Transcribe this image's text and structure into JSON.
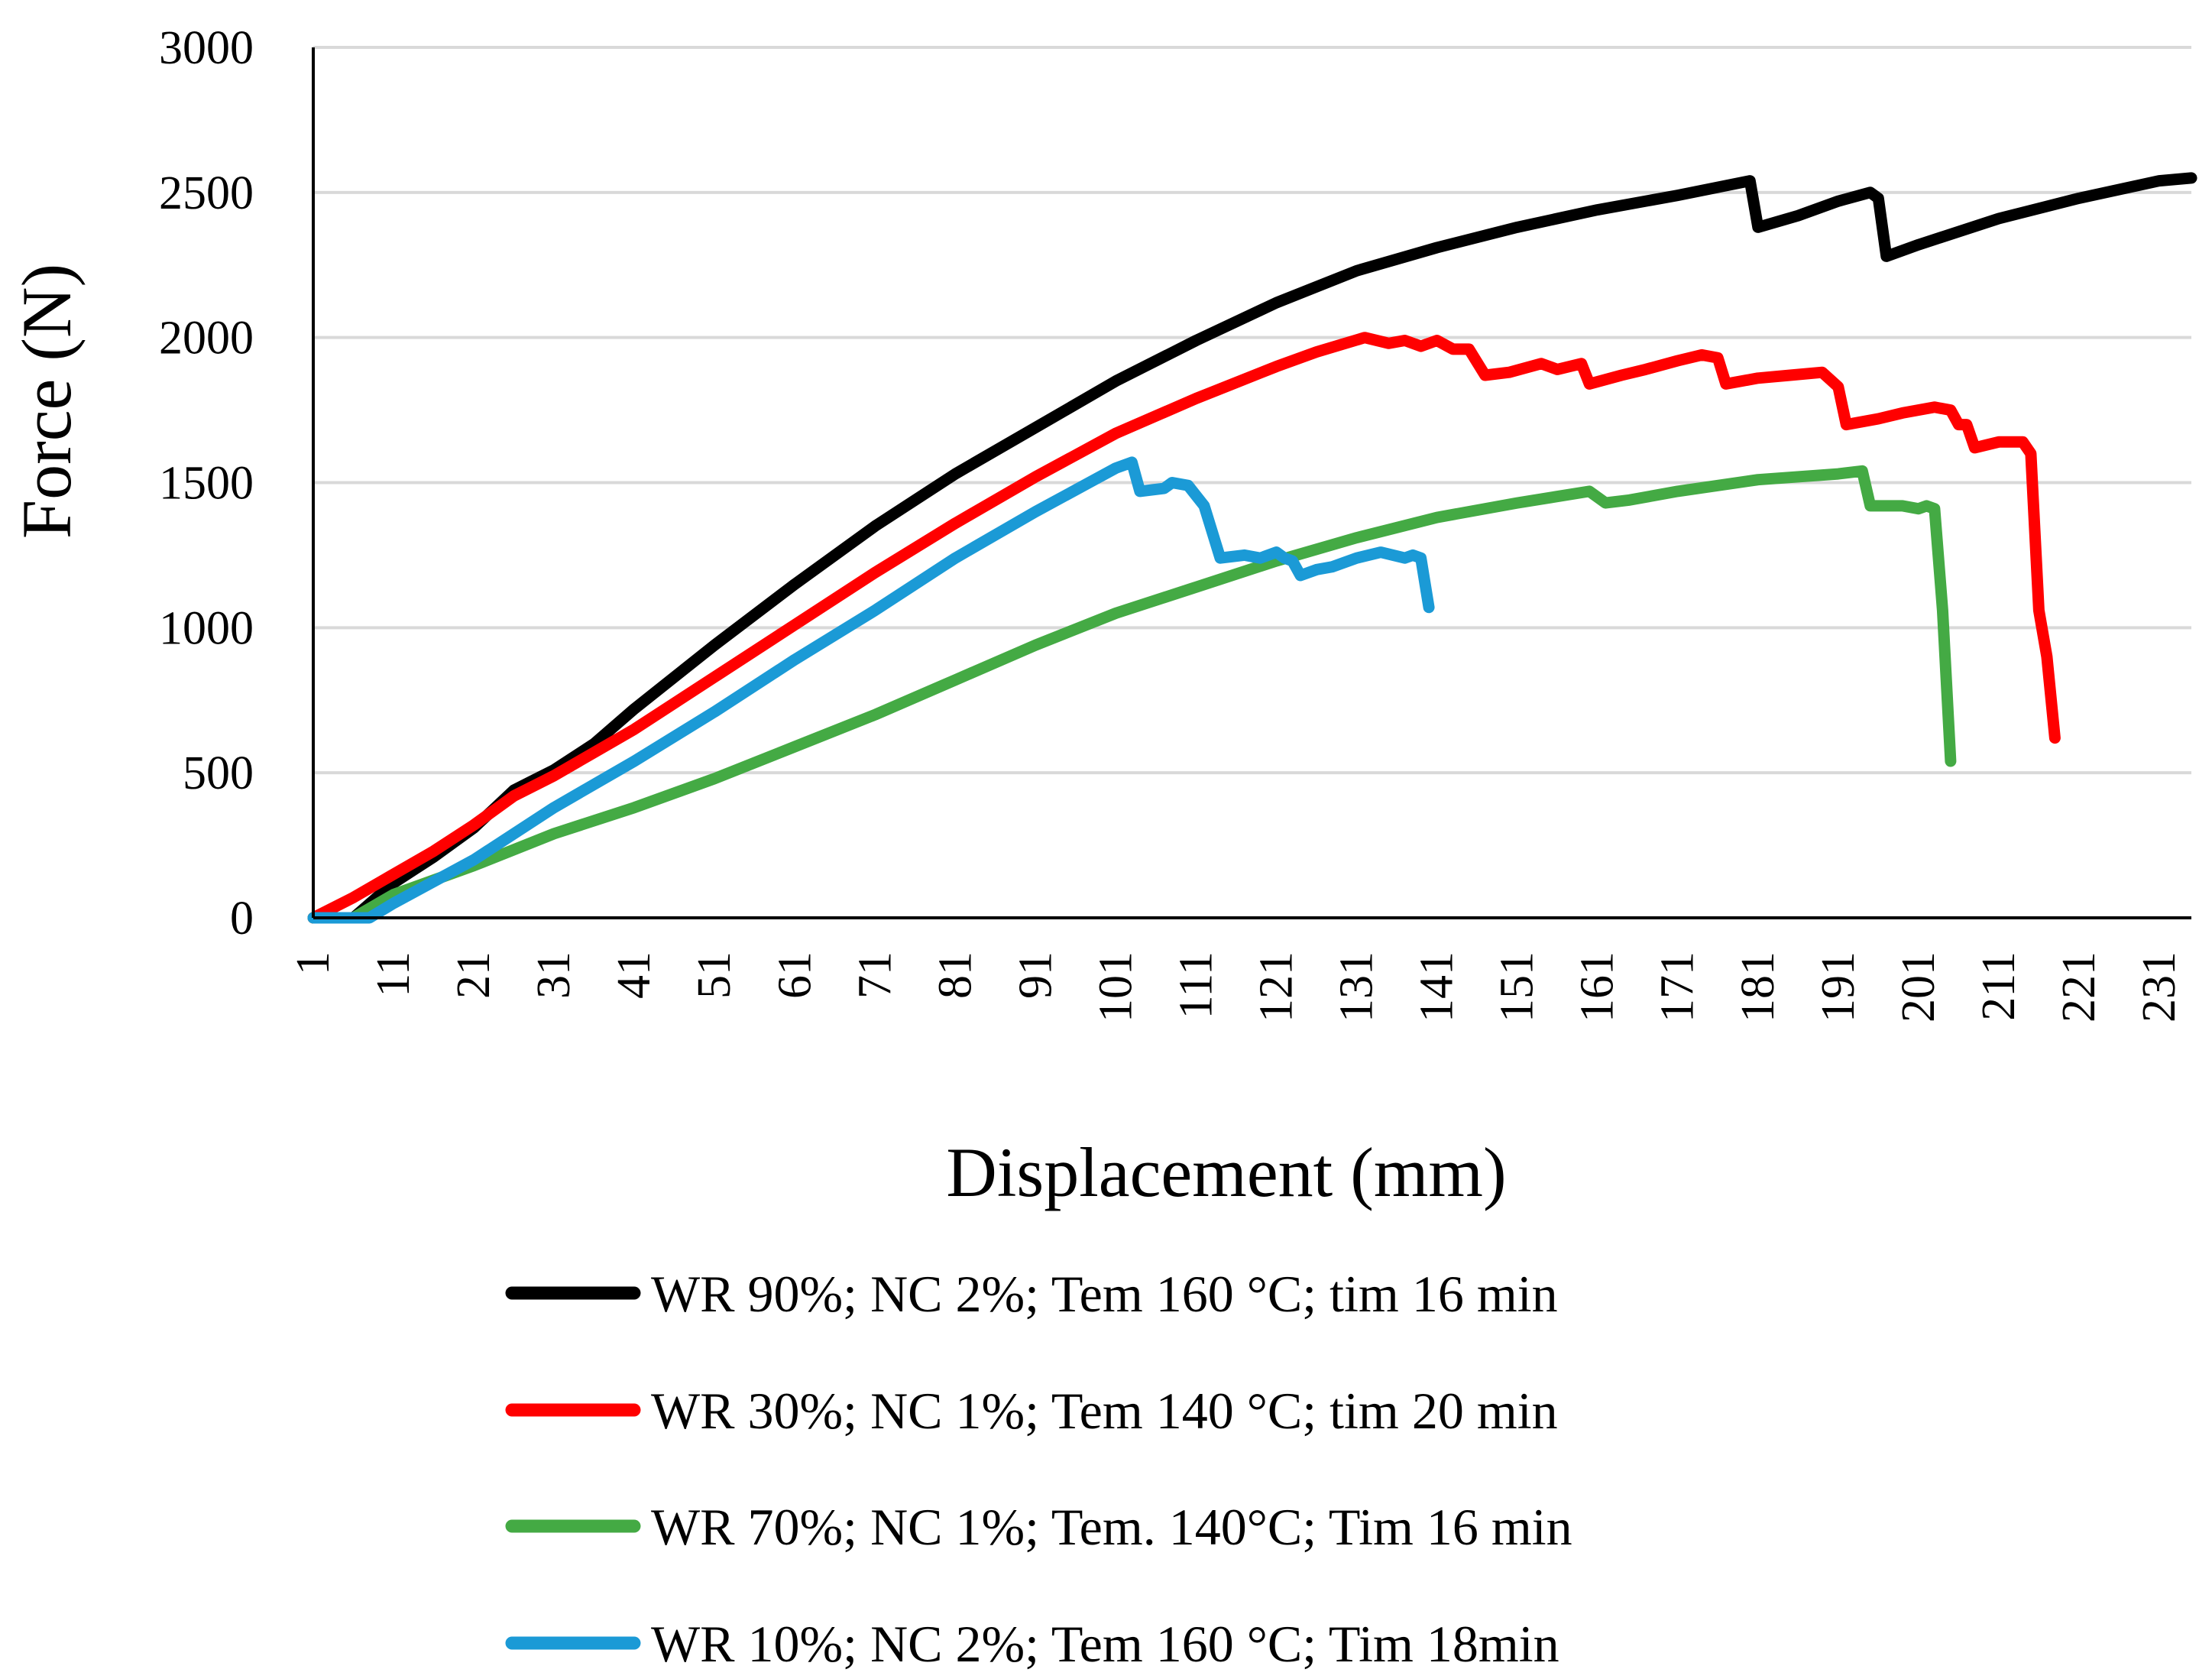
{
  "chart_data": {
    "type": "line",
    "title": "",
    "xlabel": "Displacement (mm)",
    "ylabel": "Force (N)",
    "xlim": [
      1,
      235
    ],
    "ylim": [
      0,
      3000
    ],
    "y_ticks": [
      "0",
      "500",
      "1000",
      "1500",
      "2000",
      "2500",
      "3000"
    ],
    "x_ticks": [
      "1",
      "11",
      "21",
      "31",
      "41",
      "51",
      "61",
      "71",
      "81",
      "91",
      "101",
      "111",
      "121",
      "131",
      "141",
      "151",
      "161",
      "171",
      "181",
      "191",
      "201",
      "211",
      "221",
      "231"
    ],
    "grid": "horizontal",
    "legend_position": "bottom",
    "series": [
      {
        "name": "WR 90%; NC 2%; Tem 160 °C; tim 16 min",
        "color": "#000000",
        "points": [
          [
            1,
            0
          ],
          [
            6,
            0
          ],
          [
            11,
            120
          ],
          [
            16,
            210
          ],
          [
            21,
            310
          ],
          [
            26,
            440
          ],
          [
            31,
            510
          ],
          [
            36,
            600
          ],
          [
            41,
            720
          ],
          [
            51,
            940
          ],
          [
            61,
            1150
          ],
          [
            71,
            1350
          ],
          [
            81,
            1530
          ],
          [
            91,
            1690
          ],
          [
            101,
            1850
          ],
          [
            111,
            1990
          ],
          [
            121,
            2120
          ],
          [
            131,
            2230
          ],
          [
            141,
            2310
          ],
          [
            151,
            2380
          ],
          [
            161,
            2440
          ],
          [
            171,
            2490
          ],
          [
            180,
            2540
          ],
          [
            181,
            2380
          ],
          [
            186,
            2420
          ],
          [
            191,
            2470
          ],
          [
            195,
            2500
          ],
          [
            196,
            2480
          ],
          [
            197,
            2280
          ],
          [
            201,
            2320
          ],
          [
            211,
            2410
          ],
          [
            221,
            2480
          ],
          [
            231,
            2540
          ],
          [
            235,
            2550
          ]
        ]
      },
      {
        "name": "WR 30%; NC 1%; Tem 140 °C; tim 20 min",
        "color": "#ff0000",
        "points": [
          [
            1,
            0
          ],
          [
            6,
            70
          ],
          [
            11,
            150
          ],
          [
            16,
            230
          ],
          [
            21,
            320
          ],
          [
            26,
            420
          ],
          [
            31,
            490
          ],
          [
            36,
            570
          ],
          [
            41,
            650
          ],
          [
            51,
            830
          ],
          [
            61,
            1010
          ],
          [
            71,
            1190
          ],
          [
            81,
            1360
          ],
          [
            91,
            1520
          ],
          [
            101,
            1670
          ],
          [
            111,
            1790
          ],
          [
            121,
            1900
          ],
          [
            126,
            1950
          ],
          [
            132,
            2000
          ],
          [
            135,
            1980
          ],
          [
            137,
            1990
          ],
          [
            139,
            1970
          ],
          [
            141,
            1990
          ],
          [
            143,
            1960
          ],
          [
            145,
            1960
          ],
          [
            147,
            1870
          ],
          [
            150,
            1880
          ],
          [
            154,
            1910
          ],
          [
            156,
            1890
          ],
          [
            159,
            1910
          ],
          [
            160,
            1840
          ],
          [
            164,
            1870
          ],
          [
            167,
            1890
          ],
          [
            171,
            1920
          ],
          [
            174,
            1940
          ],
          [
            176,
            1930
          ],
          [
            177,
            1840
          ],
          [
            181,
            1860
          ],
          [
            185,
            1870
          ],
          [
            189,
            1880
          ],
          [
            191,
            1830
          ],
          [
            192,
            1700
          ],
          [
            196,
            1720
          ],
          [
            199,
            1740
          ],
          [
            203,
            1760
          ],
          [
            205,
            1750
          ],
          [
            206,
            1700
          ],
          [
            207,
            1700
          ],
          [
            208,
            1620
          ],
          [
            211,
            1640
          ],
          [
            214,
            1640
          ],
          [
            215,
            1600
          ],
          [
            216,
            1060
          ],
          [
            217,
            900
          ],
          [
            218,
            620
          ]
        ]
      },
      {
        "name": "WR 70%; NC 1%; Tem. 140°C; Tim 16 min",
        "color": "#44aa44",
        "points": [
          [
            1,
            0
          ],
          [
            6,
            0
          ],
          [
            11,
            80
          ],
          [
            21,
            180
          ],
          [
            31,
            290
          ],
          [
            41,
            380
          ],
          [
            51,
            480
          ],
          [
            61,
            590
          ],
          [
            71,
            700
          ],
          [
            81,
            820
          ],
          [
            91,
            940
          ],
          [
            101,
            1050
          ],
          [
            111,
            1140
          ],
          [
            121,
            1230
          ],
          [
            131,
            1310
          ],
          [
            141,
            1380
          ],
          [
            151,
            1430
          ],
          [
            160,
            1470
          ],
          [
            162,
            1430
          ],
          [
            165,
            1440
          ],
          [
            171,
            1470
          ],
          [
            181,
            1510
          ],
          [
            191,
            1530
          ],
          [
            194,
            1540
          ],
          [
            195,
            1420
          ],
          [
            199,
            1420
          ],
          [
            201,
            1410
          ],
          [
            202,
            1420
          ],
          [
            203,
            1410
          ],
          [
            204,
            1060
          ],
          [
            205,
            540
          ]
        ]
      },
      {
        "name": "WR 10%; NC 2%; Tem 160 °C; Tim 18min",
        "color": "#1b9ad6",
        "points": [
          [
            1,
            0
          ],
          [
            8,
            0
          ],
          [
            11,
            50
          ],
          [
            21,
            200
          ],
          [
            31,
            380
          ],
          [
            41,
            540
          ],
          [
            51,
            710
          ],
          [
            61,
            890
          ],
          [
            71,
            1060
          ],
          [
            81,
            1240
          ],
          [
            91,
            1400
          ],
          [
            101,
            1550
          ],
          [
            103,
            1570
          ],
          [
            104,
            1470
          ],
          [
            107,
            1480
          ],
          [
            108,
            1500
          ],
          [
            110,
            1490
          ],
          [
            112,
            1420
          ],
          [
            114,
            1240
          ],
          [
            117,
            1250
          ],
          [
            119,
            1240
          ],
          [
            121,
            1260
          ],
          [
            122,
            1240
          ],
          [
            123,
            1230
          ],
          [
            124,
            1180
          ],
          [
            126,
            1200
          ],
          [
            128,
            1210
          ],
          [
            131,
            1240
          ],
          [
            134,
            1260
          ],
          [
            137,
            1240
          ],
          [
            138,
            1250
          ],
          [
            139,
            1240
          ],
          [
            140,
            1070
          ]
        ]
      }
    ]
  }
}
